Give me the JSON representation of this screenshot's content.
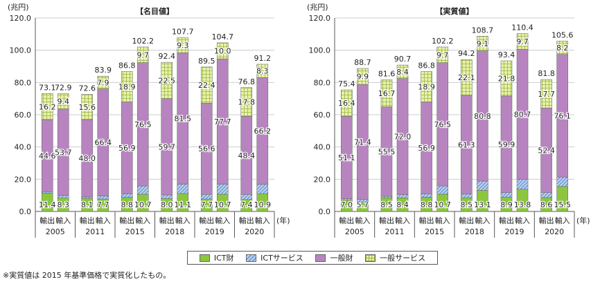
{
  "chart_data": [
    {
      "type": "bar",
      "stacked": true,
      "title": "【名目値】",
      "unit_label": "(兆円)",
      "year_suffix": "(年)",
      "ylim": [
        0,
        120
      ],
      "yticks": [
        "0.0",
        "20.0",
        "40.0",
        "60.0",
        "80.0",
        "100.0",
        "120.0"
      ],
      "groups": [
        "2005",
        "2011",
        "2015",
        "2018",
        "2019",
        "2020"
      ],
      "bar_labels": [
        "輸出",
        "輸入"
      ],
      "series": [
        {
          "name": "ICT財",
          "values": [
            [
              11.4,
              8.3
            ],
            [
              8.1,
              7.7
            ],
            [
              8.8,
              10.7
            ],
            [
              8.0,
              11.1
            ],
            [
              7.7,
              10.7
            ],
            [
              7.4,
              10.9
            ]
          ]
        },
        {
          "name": "ICTサービス",
          "values": [
            [
              0.9,
              1.6
            ],
            [
              0.9,
              1.9
            ],
            [
              2.2,
              5.1
            ],
            [
              2.3,
              5.8
            ],
            [
              2.9,
              6.2
            ],
            [
              3.2,
              5.9
            ]
          ]
        },
        {
          "name": "一般財",
          "values": [
            [
              44.6,
              53.7
            ],
            [
              48.0,
              66.4
            ],
            [
              56.9,
              76.5
            ],
            [
              59.7,
              81.5
            ],
            [
              56.6,
              77.7
            ],
            [
              48.4,
              66.2
            ]
          ]
        },
        {
          "name": "一般サービス",
          "values": [
            [
              16.2,
              9.4
            ],
            [
              15.6,
              7.9
            ],
            [
              18.9,
              9.7
            ],
            [
              22.5,
              9.3
            ],
            [
              22.4,
              10.0
            ],
            [
              17.8,
              8.3
            ]
          ]
        }
      ],
      "totals": [
        [
          73.1,
          72.9
        ],
        [
          72.6,
          83.9
        ],
        [
          86.8,
          102.2
        ],
        [
          92.4,
          107.7
        ],
        [
          89.5,
          104.7
        ],
        [
          76.8,
          91.2
        ]
      ]
    },
    {
      "type": "bar",
      "stacked": true,
      "title": "【実質値】",
      "unit_label": "(兆円)",
      "year_suffix": "(年)",
      "ylim": [
        0,
        120
      ],
      "yticks": [
        "0.0",
        "20.0",
        "40.0",
        "60.0",
        "80.0",
        "100.0",
        "120.0"
      ],
      "groups": [
        "2005",
        "2011",
        "2015",
        "2018",
        "2019",
        "2020"
      ],
      "bar_labels": [
        "輸出",
        "輸入"
      ],
      "series": [
        {
          "name": "ICT財",
          "values": [
            [
              7.0,
              5.7
            ],
            [
              8.5,
              8.4
            ],
            [
              8.8,
              10.7
            ],
            [
              8.5,
              13.1
            ],
            [
              8.9,
              13.8
            ],
            [
              8.6,
              15.5
            ]
          ]
        },
        {
          "name": "ICTサービス",
          "values": [
            [
              0.9,
              1.7
            ],
            [
              0.9,
              2.0
            ],
            [
              2.2,
              5.1
            ],
            [
              2.3,
              5.7
            ],
            [
              2.8,
              6.1
            ],
            [
              3.1,
              5.8
            ]
          ]
        },
        {
          "name": "一般財",
          "values": [
            [
              51.1,
              71.4
            ],
            [
              55.5,
              72.0
            ],
            [
              56.9,
              76.5
            ],
            [
              61.3,
              80.8
            ],
            [
              59.9,
              80.7
            ],
            [
              52.4,
              76.1
            ]
          ]
        },
        {
          "name": "一般サービス",
          "values": [
            [
              16.4,
              9.9
            ],
            [
              16.7,
              8.4
            ],
            [
              18.9,
              9.7
            ],
            [
              22.1,
              9.1
            ],
            [
              21.8,
              9.7
            ],
            [
              17.7,
              8.2
            ]
          ]
        }
      ],
      "totals": [
        [
          75.4,
          88.7
        ],
        [
          81.6,
          90.7
        ],
        [
          86.8,
          102.2
        ],
        [
          94.2,
          108.7
        ],
        [
          93.4,
          110.4
        ],
        [
          81.8,
          105.6
        ]
      ]
    }
  ],
  "legend": {
    "items": [
      {
        "label": "ICT財",
        "color": "#8cc63f"
      },
      {
        "label": "ICTサービス",
        "color": "#a9c4ea"
      },
      {
        "label": "一般財",
        "color": "#b784c0"
      },
      {
        "label": "一般サービス",
        "color": "#e4ef9c"
      }
    ]
  },
  "note": "※実質値は 2015 年基準価格で実質化したもの。"
}
